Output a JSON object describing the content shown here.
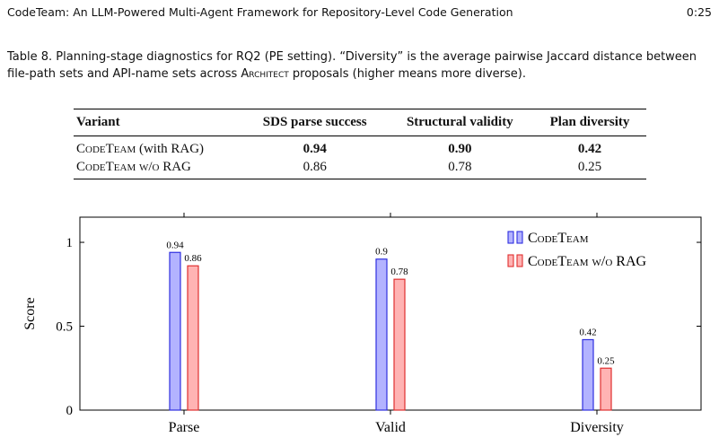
{
  "header": {
    "title": "CodeTeam: An LLM-Powered Multi-Agent Framework for Repository-Level Code Generation",
    "page": "0:25"
  },
  "caption": {
    "label": "Table 8.",
    "text_before": "Planning-stage diagnostics for RQ2 (PE setting). “Diversity” is the average pairwise Jaccard distance between file-path sets and API-name sets across",
    "architect": "Architect",
    "text_after": "proposals (higher means more diverse)."
  },
  "table": {
    "columns": [
      "Variant",
      "SDS parse success",
      "Structural validity",
      "Plan diversity"
    ],
    "rows": [
      {
        "variant_name": "CodeTeam",
        "variant_suffix": "(with RAG)",
        "values": [
          "0.94",
          "0.90",
          "0.42"
        ],
        "bold": true
      },
      {
        "variant_name": "CodeTeam",
        "variant_suffix": "w/o RAG",
        "values": [
          "0.86",
          "0.78",
          "0.25"
        ],
        "bold": false
      }
    ]
  },
  "colors": {
    "series1_fill": "#b3b3ff",
    "series1_stroke": "#3030e0",
    "series2_fill": "#ffb3b3",
    "series2_stroke": "#e03030"
  },
  "chart_data": {
    "type": "bar",
    "categories": [
      "Parse",
      "Valid",
      "Diversity"
    ],
    "series": [
      {
        "name": "CodeTeam",
        "values": [
          0.94,
          0.9,
          0.42
        ],
        "labels": [
          "0.94",
          "0.9",
          "0.42"
        ]
      },
      {
        "name": "CodeTeam w/o RAG",
        "values": [
          0.86,
          0.78,
          0.25
        ],
        "labels": [
          "0.86",
          "0.78",
          "0.25"
        ]
      }
    ],
    "ylabel": "Score",
    "xlabel": "",
    "ylim": [
      0,
      1.15
    ],
    "yticks": [
      0,
      0.5,
      1
    ],
    "ytick_labels": [
      "0",
      "0.5",
      "1"
    ],
    "legend": "top-right",
    "grid": false
  }
}
